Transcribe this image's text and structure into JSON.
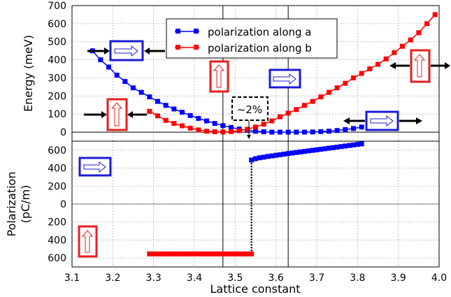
{
  "chart_data": {
    "type": "scatter",
    "xlabel": "Lattice constant",
    "x_ticks": [
      "3.1",
      "3.2",
      "3.3",
      "3.4",
      "3.5",
      "3.6",
      "3.7",
      "3.8",
      "3.9",
      "4.0"
    ],
    "xlim": [
      3.1,
      4.0
    ],
    "grid": true,
    "legend_position": "top-center",
    "annotation": "~2%",
    "vertical_lines_x": [
      3.47,
      3.63
    ],
    "colors": {
      "a": "#0000ff",
      "b": "#ff0000",
      "box_blue": "#1b1bd6",
      "box_red": "#e61e1e"
    },
    "panels": [
      {
        "name": "energy",
        "ylabel": "Energy (meV)",
        "ylim": [
          -50,
          700
        ],
        "y_ticks": [
          "0",
          "100",
          "200",
          "300",
          "400",
          "500",
          "600",
          "700"
        ],
        "series": [
          {
            "name": "polarization along a",
            "x": [
              3.15,
              3.17,
              3.19,
              3.21,
              3.23,
              3.25,
              3.27,
              3.29,
              3.31,
              3.33,
              3.35,
              3.37,
              3.39,
              3.41,
              3.43,
              3.45,
              3.47,
              3.49,
              3.51,
              3.53,
              3.55,
              3.57,
              3.59,
              3.61,
              3.63,
              3.65,
              3.67,
              3.69,
              3.71,
              3.73,
              3.75,
              3.77,
              3.79,
              3.81
            ],
            "y": [
              450,
              400,
              360,
              315,
              280,
              245,
              220,
              195,
              170,
              148,
              128,
              110,
              92,
              76,
              62,
              48,
              36,
              26,
              17,
              10,
              5,
              2,
              0,
              0,
              0,
              0,
              0,
              1,
              3,
              5,
              9,
              14,
              20,
              28
            ]
          },
          {
            "name": "polarization along b",
            "x": [
              3.29,
              3.31,
              3.33,
              3.35,
              3.37,
              3.39,
              3.41,
              3.43,
              3.45,
              3.47,
              3.49,
              3.51,
              3.53,
              3.55,
              3.57,
              3.59,
              3.61,
              3.63,
              3.65,
              3.67,
              3.69,
              3.71,
              3.73,
              3.75,
              3.77,
              3.79,
              3.81,
              3.83,
              3.85,
              3.87,
              3.89,
              3.91,
              3.93,
              3.95,
              3.97,
              3.99
            ],
            "y": [
              115,
              90,
              65,
              48,
              35,
              22,
              12,
              5,
              2,
              1,
              3,
              8,
              16,
              28,
              44,
              62,
              85,
              105,
              125,
              148,
              170,
              195,
              220,
              245,
              270,
              300,
              325,
              350,
              375,
              405,
              440,
              475,
              510,
              550,
              600,
              650
            ]
          }
        ]
      },
      {
        "name": "polarization",
        "ylabel": "Polarization",
        "ylabel2": "(pC/m)",
        "ylim": [
          -700,
          700
        ],
        "y_ticks": [
          "600",
          "400",
          "200",
          "0",
          "200",
          "400",
          "600"
        ],
        "y_tick_values": [
          600,
          400,
          200,
          0,
          -200,
          -400,
          -600
        ],
        "series": [
          {
            "name": "polarization along a",
            "x": [
              3.54,
              3.55,
              3.56,
              3.57,
              3.58,
              3.59,
              3.6,
              3.61,
              3.62,
              3.63,
              3.64,
              3.65,
              3.66,
              3.67,
              3.68,
              3.69,
              3.7,
              3.71,
              3.72,
              3.73,
              3.74,
              3.75,
              3.76,
              3.77,
              3.78,
              3.79,
              3.8,
              3.81
            ],
            "y": [
              490,
              505,
              515,
              522,
              530,
              536,
              543,
              549,
              556,
              562,
              568,
              574,
              580,
              586,
              592,
              598,
              604,
              610,
              616,
              622,
              628,
              634,
              640,
              646,
              652,
              658,
              664,
              670
            ]
          },
          {
            "name": "polarization along b",
            "x": [
              3.29,
              3.3,
              3.31,
              3.32,
              3.33,
              3.34,
              3.35,
              3.36,
              3.37,
              3.38,
              3.39,
              3.4,
              3.41,
              3.42,
              3.43,
              3.44,
              3.45,
              3.46,
              3.47,
              3.48,
              3.49,
              3.5,
              3.51,
              3.52,
              3.53,
              3.54
            ],
            "y": [
              -555,
              -555,
              -555,
              -555,
              -555,
              -555,
              -555,
              -555,
              -555,
              -555,
              -555,
              -555,
              -555,
              -555,
              -555,
              -555,
              -555,
              -555,
              -555,
              -555,
              -555,
              -555,
              -555,
              -555,
              -555,
              -555
            ]
          }
        ],
        "transition_line": {
          "x": 3.54,
          "y_from": -555,
          "y_to": 490
        }
      }
    ]
  }
}
